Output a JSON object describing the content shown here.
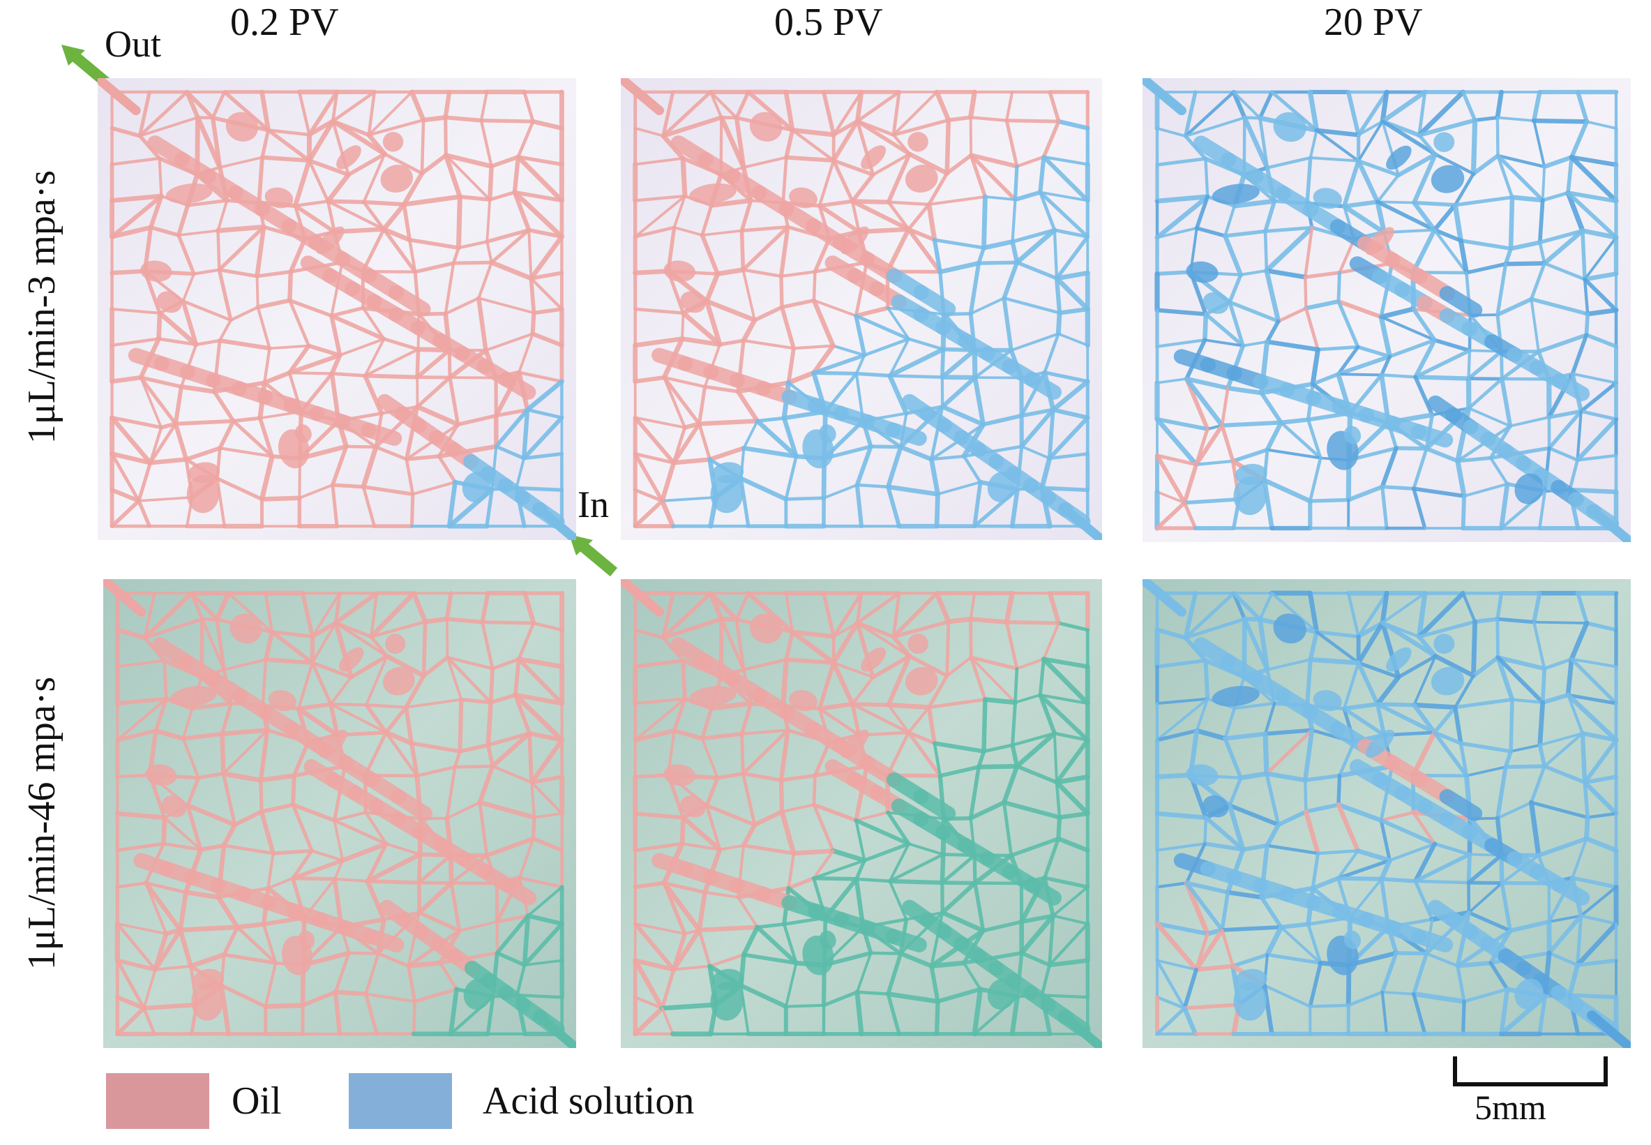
{
  "columns": [
    "0.2 PV",
    "0.5 PV",
    "20 PV"
  ],
  "rows": [
    "1μL/min-3  mpa·s",
    "1μL/min-46  mpa·s"
  ],
  "ports": {
    "outlet": "Out",
    "inlet": "In"
  },
  "legend": [
    {
      "label": "Oil",
      "color": "#d9979c"
    },
    {
      "label": "Acid solution",
      "color": "#84afd8"
    }
  ],
  "scale_bar": {
    "label": "5mm"
  },
  "colors": {
    "oil": "#eda6a3",
    "acid": "#79bde7",
    "acid_dark": "#5aa4dd",
    "acid_green": "#5cbca9",
    "bg_row1": "#e8e4f1",
    "bg_row2": "#a9c9c0",
    "arrow": "#6db33f"
  }
}
